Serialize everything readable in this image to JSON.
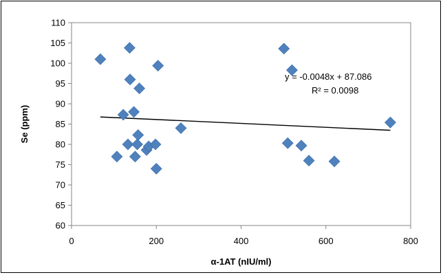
{
  "chart_data": {
    "type": "scatter",
    "title": "",
    "xlabel": "α-1AT (nIU/ml)",
    "ylabel": "Se (ppm)",
    "xlim": [
      0,
      800
    ],
    "ylim": [
      60,
      110
    ],
    "xticks": [
      0,
      200,
      400,
      600,
      800
    ],
    "yticks": [
      60,
      65,
      70,
      75,
      80,
      85,
      90,
      95,
      100,
      105,
      110
    ],
    "grid": false,
    "legend": "none",
    "marker_color": "#4F81BD",
    "points": [
      {
        "x": 68,
        "y": 101
      },
      {
        "x": 107,
        "y": 77
      },
      {
        "x": 122,
        "y": 87.3
      },
      {
        "x": 133,
        "y": 80
      },
      {
        "x": 137,
        "y": 103.8
      },
      {
        "x": 138,
        "y": 96
      },
      {
        "x": 147,
        "y": 88
      },
      {
        "x": 150,
        "y": 77
      },
      {
        "x": 155,
        "y": 80
      },
      {
        "x": 157,
        "y": 82.3
      },
      {
        "x": 160,
        "y": 93.8
      },
      {
        "x": 177,
        "y": 78.6
      },
      {
        "x": 182,
        "y": 79.5
      },
      {
        "x": 198,
        "y": 80
      },
      {
        "x": 200,
        "y": 74
      },
      {
        "x": 204,
        "y": 99.4
      },
      {
        "x": 258,
        "y": 84
      },
      {
        "x": 501,
        "y": 103.6
      },
      {
        "x": 510,
        "y": 80.3
      },
      {
        "x": 520,
        "y": 98.3
      },
      {
        "x": 542,
        "y": 79.7
      },
      {
        "x": 560,
        "y": 76
      },
      {
        "x": 620,
        "y": 75.8
      },
      {
        "x": 752,
        "y": 85.4
      }
    ],
    "trendline": {
      "slope": -0.0048,
      "intercept": 87.086,
      "x_range": [
        68,
        752
      ],
      "equation_label": "y = -0.0048x + 87.086",
      "r2_label": "R² = 0.0098"
    }
  }
}
